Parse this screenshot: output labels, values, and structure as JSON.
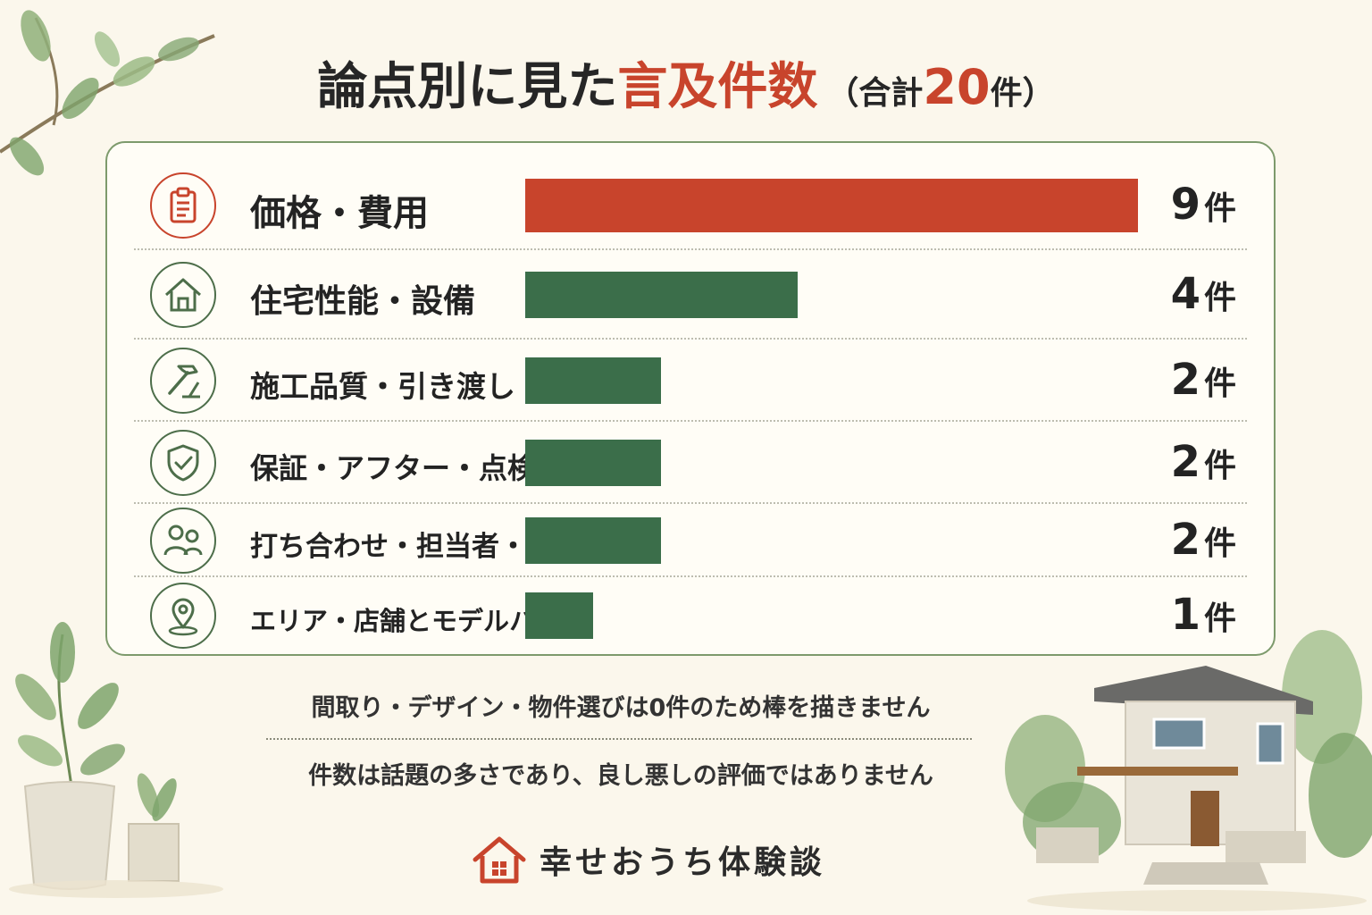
{
  "title": {
    "main": "論点別に見た",
    "accent": "言及件数",
    "total_open": "（合計",
    "total_num": "20",
    "total_close": "件）"
  },
  "colors": {
    "highlight": "#c8442c",
    "bar": "#3b6e4a",
    "panel_border": "#7d9a6c",
    "background": "#fbf7ec"
  },
  "unit": "件",
  "chart_data": {
    "type": "bar",
    "orientation": "horizontal",
    "categories": [
      "価格・費用",
      "住宅性能・設備",
      "施工品質・引き渡し",
      "保証・アフター・点検",
      "打ち合わせ・担当者・契約",
      "エリア・店舗とモデルハウス"
    ],
    "values": [
      9,
      4,
      2,
      2,
      2,
      1
    ],
    "icons": [
      "clipboard-icon",
      "house-icon",
      "hammer-icon",
      "shield-check-icon",
      "people-icon",
      "location-pin-icon"
    ],
    "highlight_index": 0,
    "total": 20
  },
  "notes": [
    "間取り・デザイン・物件選びは0件のため棒を描きません",
    "件数は話題の多さであり、良し悪しの評価ではありません"
  ],
  "brand": {
    "name": "幸せおうち体験談",
    "icon": "house-logo-icon"
  }
}
